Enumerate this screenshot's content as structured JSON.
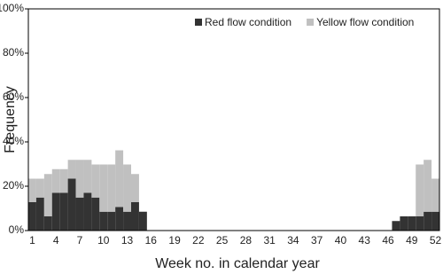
{
  "chart_data": {
    "type": "stacked-bar",
    "x_label": "Week no. in calendar year",
    "y_label": "Frequency",
    "categories": [
      "1",
      null,
      null,
      "4",
      null,
      null,
      "7",
      null,
      null,
      "10",
      null,
      null,
      "13",
      null,
      null,
      "16",
      null,
      null,
      "19",
      null,
      null,
      "22",
      null,
      null,
      "25",
      null,
      null,
      "28",
      null,
      null,
      "31",
      null,
      null,
      "34",
      null,
      null,
      "37",
      null,
      null,
      "40",
      null,
      null,
      "43",
      null,
      null,
      "46",
      null,
      null,
      "49",
      null,
      null,
      "52"
    ],
    "series": [
      {
        "name": "Red flow condition",
        "color": "#333333",
        "values": [
          12.8,
          14.9,
          6.4,
          17,
          17,
          23.4,
          14.9,
          17,
          14.9,
          8.5,
          8.5,
          10.6,
          8.5,
          12.8,
          8.5,
          0,
          0,
          0,
          0,
          0,
          0,
          0,
          0,
          0,
          0,
          0,
          0,
          0,
          0,
          0,
          0,
          0,
          0,
          0,
          0,
          0,
          0,
          0,
          0,
          0,
          0,
          0,
          0,
          0,
          0,
          0,
          4.3,
          6.4,
          6.4,
          6.4,
          8.5,
          8.5
        ]
      },
      {
        "name": "Yellow flow condition",
        "color": "#c0c0c0",
        "values": [
          10.6,
          8.5,
          19.1,
          10.7,
          10.7,
          8.5,
          17,
          14.9,
          14.9,
          21.3,
          21.3,
          25.6,
          21.3,
          12.7,
          0,
          0,
          0,
          0,
          0,
          0,
          0,
          0,
          0,
          0,
          0,
          0,
          0,
          0,
          0,
          0,
          0,
          0,
          0,
          0,
          0,
          0,
          0,
          0,
          0,
          0,
          0,
          0,
          0,
          0,
          0,
          0,
          0,
          0,
          0,
          23.4,
          23.4,
          14.9
        ]
      }
    ],
    "ylim": [
      0,
      100
    ],
    "yticks": [
      {
        "value": 0,
        "label": "0%"
      },
      {
        "value": 20,
        "label": "20%"
      },
      {
        "value": 40,
        "label": "40%"
      },
      {
        "value": 60,
        "label": "60%"
      },
      {
        "value": 80,
        "label": "80%"
      },
      {
        "value": 100,
        "label": "100%"
      }
    ],
    "legend": "top-right"
  }
}
